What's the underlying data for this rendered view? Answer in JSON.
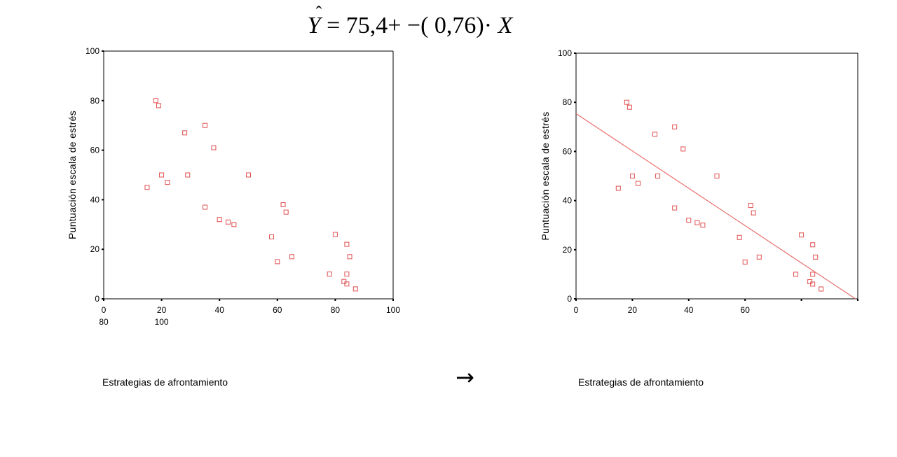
{
  "equation": {
    "y_symbol": "Y",
    "hat_symbol": "ˆ",
    "body": " = 75,4+ −( 0,76)· ",
    "x_symbol": "X"
  },
  "arrow": "→",
  "colors": {
    "marker": "#e05050",
    "line": "#e87070",
    "axis": "#000000"
  },
  "chart_data": [
    {
      "type": "scatter",
      "title": "",
      "xlabel": "Estrategias de afrontamiento",
      "ylabel": "Puntuación escala de estrés",
      "xlim": [
        0,
        100
      ],
      "ylim": [
        0,
        100
      ],
      "x_tick_labels": [
        "0",
        "20",
        "40",
        "60",
        "80",
        "100"
      ],
      "x_tick_labels_second_row": [
        "80",
        "100"
      ],
      "y_tick_labels": [
        "0",
        "20",
        "40",
        "60",
        "80",
        "100"
      ],
      "points": [
        [
          18,
          80
        ],
        [
          19,
          78
        ],
        [
          15,
          45
        ],
        [
          20,
          50
        ],
        [
          22,
          47
        ],
        [
          28,
          67
        ],
        [
          29,
          50
        ],
        [
          35,
          70
        ],
        [
          38,
          61
        ],
        [
          35,
          37
        ],
        [
          40,
          32
        ],
        [
          43,
          31
        ],
        [
          45,
          30
        ],
        [
          50,
          50
        ],
        [
          62,
          38
        ],
        [
          63,
          35
        ],
        [
          58,
          25
        ],
        [
          60,
          15
        ],
        [
          65,
          17
        ],
        [
          80,
          26
        ],
        [
          84,
          22
        ],
        [
          85,
          17
        ],
        [
          78,
          10
        ],
        [
          84,
          10
        ],
        [
          83,
          7
        ],
        [
          84,
          6
        ],
        [
          87,
          4
        ]
      ]
    },
    {
      "type": "scatter",
      "title": "",
      "xlabel": "Estrategias de afrontamiento",
      "ylabel": "Puntuación escala de estrés",
      "xlim": [
        0,
        100
      ],
      "ylim": [
        0,
        100
      ],
      "x_tick_labels": [
        "0",
        "20",
        "40",
        "60"
      ],
      "y_tick_labels": [
        "0",
        "20",
        "40",
        "60",
        "80",
        "100"
      ],
      "regression_line": {
        "intercept": 75.4,
        "slope": -0.76
      },
      "points": [
        [
          18,
          80
        ],
        [
          19,
          78
        ],
        [
          15,
          45
        ],
        [
          20,
          50
        ],
        [
          22,
          47
        ],
        [
          28,
          67
        ],
        [
          29,
          50
        ],
        [
          35,
          70
        ],
        [
          38,
          61
        ],
        [
          35,
          37
        ],
        [
          40,
          32
        ],
        [
          43,
          31
        ],
        [
          45,
          30
        ],
        [
          50,
          50
        ],
        [
          62,
          38
        ],
        [
          63,
          35
        ],
        [
          58,
          25
        ],
        [
          60,
          15
        ],
        [
          65,
          17
        ],
        [
          80,
          26
        ],
        [
          84,
          22
        ],
        [
          85,
          17
        ],
        [
          78,
          10
        ],
        [
          84,
          10
        ],
        [
          83,
          7
        ],
        [
          84,
          6
        ],
        [
          87,
          4
        ]
      ]
    }
  ]
}
